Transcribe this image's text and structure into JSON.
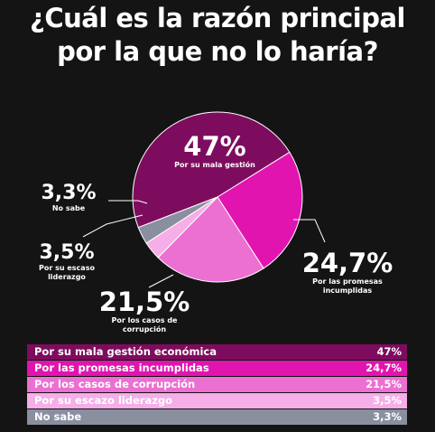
{
  "title_line1": "¿Cuál es la razón principal",
  "title_line2": "por la que no lo haría?",
  "chart_data": {
    "type": "pie",
    "labels": [
      "Por su mala gestión",
      "Por las promesas incumplidas",
      "Por los casos de corrupción",
      "Por su escaso liderazgo",
      "No sabe"
    ],
    "values": [
      47,
      24.7,
      21.5,
      3.5,
      3.3
    ],
    "value_labels": [
      "47%",
      "24,7%",
      "21,5%",
      "3,5%",
      "3,3%"
    ],
    "colors": [
      "#7e0c5e",
      "#e214b0",
      "#ec6fd2",
      "#f5aee8",
      "#8a8fa0"
    ]
  },
  "legend": [
    {
      "label": "Por su mala gestión económica",
      "value": "47%",
      "color": "#7e0c5e"
    },
    {
      "label": "Por las promesas incumplidas",
      "value": "24,7%",
      "color": "#e214b0"
    },
    {
      "label": "Por los casos de corrupción",
      "value": "21,5%",
      "color": "#ec6fd2"
    },
    {
      "label": "Por su escazo liderazgo",
      "value": "3,5%",
      "color": "#f5aee8"
    },
    {
      "label": "No sabe",
      "value": "3,3%",
      "color": "#8a8fa0"
    }
  ]
}
